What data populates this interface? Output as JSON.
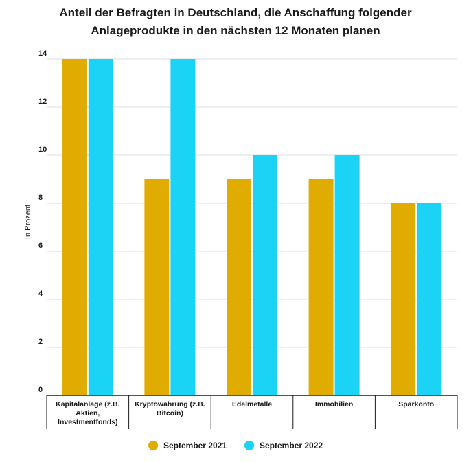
{
  "chart_data": {
    "type": "bar",
    "title": "Anteil der Befragten in Deutschland, die Anschaffung folgender Anlageprodukte in den nächsten 12 Monaten planen",
    "title_lines": [
      "Anteil der Befragten in Deutschland, die Anschaffung folgender",
      "Anlageprodukte in den nächsten 12 Monaten planen"
    ],
    "xlabel": "",
    "ylabel": "In Prozent",
    "ylim": [
      0,
      14
    ],
    "yticks": [
      0,
      2,
      4,
      6,
      8,
      10,
      12,
      14
    ],
    "grid": true,
    "legend_position": "bottom",
    "categories": [
      "Kapitalanlage (z.B. Aktien, Investmentfonds)",
      "Kryptowährung (z.B. Bitcoin)",
      "Edelmetalle",
      "Immobilien",
      "Sparkonto"
    ],
    "category_lines": [
      [
        "Kapitalanlage (z.B.",
        "Aktien,",
        "Investmentfonds)"
      ],
      [
        "Kryptowährung (z.B.",
        "Bitcoin)"
      ],
      [
        "Edelmetalle"
      ],
      [
        "Immobilien"
      ],
      [
        "Sparkonto"
      ]
    ],
    "series": [
      {
        "name": "September 2021",
        "color": "#E0AC00",
        "values": [
          14,
          9,
          9,
          9,
          8
        ]
      },
      {
        "name": "September 2022",
        "color": "#1AD3F5",
        "values": [
          14,
          14,
          10,
          10,
          8
        ]
      }
    ]
  }
}
